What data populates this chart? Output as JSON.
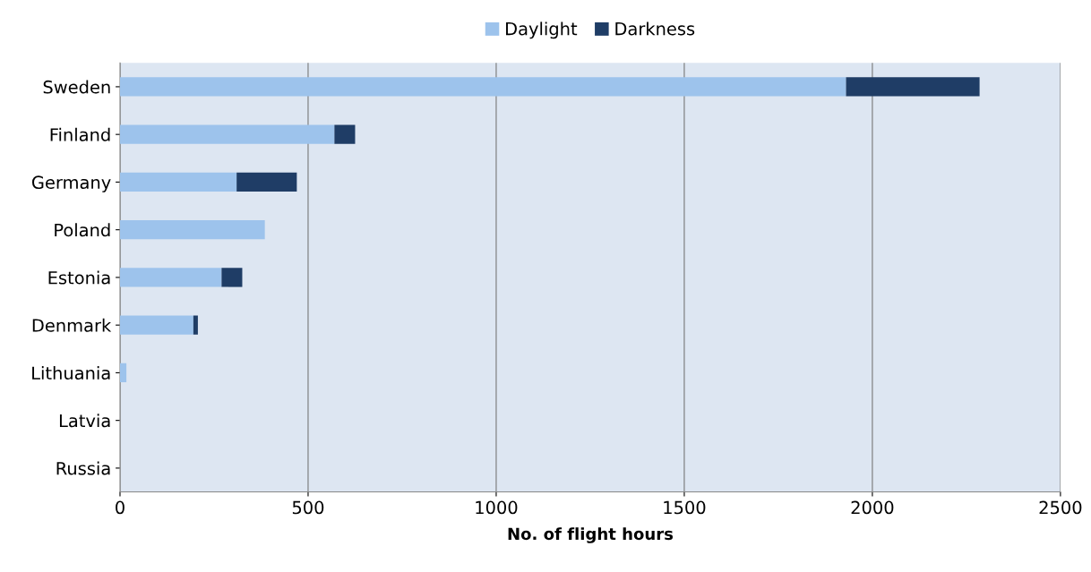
{
  "chart_data": {
    "type": "bar",
    "orientation": "horizontal",
    "stacked": true,
    "categories": [
      "Sweden",
      "Finland",
      "Germany",
      "Poland",
      "Estonia",
      "Denmark",
      "Lithuania",
      "Latvia",
      "Russia"
    ],
    "series": [
      {
        "name": "Daylight",
        "color": "#9dc3ec",
        "values": [
          1930,
          570,
          310,
          385,
          270,
          195,
          17,
          0,
          0
        ]
      },
      {
        "name": "Darkness",
        "color": "#1f3d66",
        "values": [
          355,
          55,
          160,
          0,
          55,
          12,
          0,
          0,
          0
        ]
      }
    ],
    "xlabel": "No. of flight hours",
    "xlim": [
      0,
      2500
    ],
    "xticks": [
      0,
      500,
      1000,
      1500,
      2000,
      2500
    ],
    "grid": "x",
    "legend": "top"
  }
}
